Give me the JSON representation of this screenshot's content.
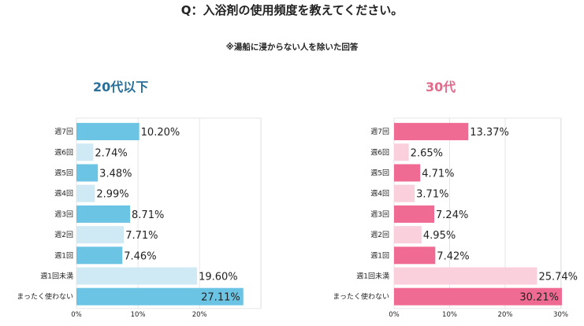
{
  "question": "Q：入浴剤の使用頻度を教えてください。",
  "note": "※湯船に浸からない人を除いた回答",
  "colors": {
    "left_dark": "#6cc4e4",
    "left_light": "#cfeaf5",
    "right_dark": "#f06b93",
    "right_light": "#f9d0dc",
    "grid": "#e6e6e6",
    "text": "#222222"
  },
  "chart_data": [
    {
      "type": "bar",
      "orientation": "horizontal",
      "title": "20代以下",
      "categories": [
        "週7回",
        "週6回",
        "週5回",
        "週4回",
        "週3回",
        "週2回",
        "週1回",
        "週1回未満",
        "まったく使わない"
      ],
      "values": [
        10.2,
        2.74,
        3.48,
        2.99,
        8.71,
        7.71,
        7.46,
        19.6,
        27.11
      ],
      "value_labels": [
        "10.20%",
        "2.74%",
        "3.48%",
        "2.99%",
        "8.71%",
        "7.71%",
        "7.46%",
        "19.60%",
        "27.11%"
      ],
      "xlim": [
        0,
        30
      ],
      "xticks": [
        "0%",
        "10%",
        "20%"
      ],
      "xlabel": "",
      "ylabel": ""
    },
    {
      "type": "bar",
      "orientation": "horizontal",
      "title": "30代",
      "categories": [
        "週7回",
        "週6回",
        "週5回",
        "週4回",
        "週3回",
        "週2回",
        "週1回",
        "週1回未満",
        "まったく使わない"
      ],
      "values": [
        13.37,
        2.65,
        4.71,
        3.71,
        7.24,
        4.95,
        7.42,
        25.74,
        30.21
      ],
      "value_labels": [
        "13.37%",
        "2.65%",
        "4.71%",
        "3.71%",
        "7.24%",
        "4.95%",
        "7.42%",
        "25.74%",
        "30.21%"
      ],
      "xlim": [
        0,
        30
      ],
      "xticks": [
        "0%",
        "10%",
        "20%",
        "30%"
      ],
      "xlabel": "",
      "ylabel": ""
    }
  ]
}
